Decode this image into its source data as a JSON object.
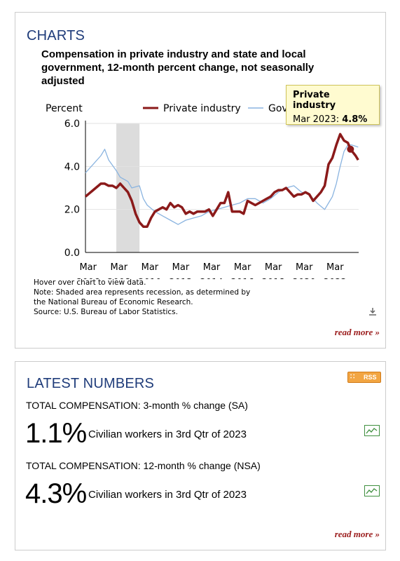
{
  "charts_panel": {
    "heading": "CHARTS",
    "chart_title": "Compensation in private industry and state and local government, 12-month percent change, not seasonally adjusted",
    "notes": [
      "Hover over chart to view data.",
      "Note: Shaded area represents recession, as determined by",
      "the National Bureau of Economic Research.",
      "Source: U.S. Bureau of Labor Statistics."
    ],
    "tooltip": {
      "series": "Private industry",
      "period": "Mar 2023:",
      "value": "4.8%"
    },
    "read_more": "read more »",
    "download_icon": "download-icon"
  },
  "chart_data": {
    "type": "line",
    "ylabel": "Percent",
    "ylim": [
      0,
      6
    ],
    "yticks": [
      "0.0",
      "2.0",
      "4.0",
      "6.0"
    ],
    "xticks": [
      {
        "month": "Mar",
        "year": "2006",
        "x": 2006.17
      },
      {
        "month": "Mar",
        "year": "2008",
        "x": 2008.17
      },
      {
        "month": "Mar",
        "year": "2010",
        "x": 2010.17
      },
      {
        "month": "Mar",
        "year": "2012",
        "x": 2012.17
      },
      {
        "month": "Mar",
        "year": "2014",
        "x": 2014.17
      },
      {
        "month": "Mar",
        "year": "2016",
        "x": 2016.17
      },
      {
        "month": "Mar",
        "year": "2018",
        "x": 2018.17
      },
      {
        "month": "Mar",
        "year": "2020",
        "x": 2020.17
      },
      {
        "month": "Mar",
        "year": "2022",
        "x": 2022.17
      }
    ],
    "xlim": [
      2006.0,
      2023.7
    ],
    "recession": [
      2008.0,
      2009.5
    ],
    "grid": "horizontal",
    "legend_position": "top",
    "series": [
      {
        "name": "Private industry",
        "color": "#8b1a1a",
        "points": [
          [
            2006.0,
            2.6
          ],
          [
            2006.5,
            2.9
          ],
          [
            2007.0,
            3.2
          ],
          [
            2007.25,
            3.2
          ],
          [
            2007.5,
            3.1
          ],
          [
            2007.75,
            3.1
          ],
          [
            2008.0,
            3.0
          ],
          [
            2008.25,
            3.2
          ],
          [
            2008.5,
            3.0
          ],
          [
            2008.75,
            2.8
          ],
          [
            2009.0,
            2.4
          ],
          [
            2009.25,
            1.8
          ],
          [
            2009.5,
            1.4
          ],
          [
            2009.75,
            1.2
          ],
          [
            2010.0,
            1.2
          ],
          [
            2010.25,
            1.6
          ],
          [
            2010.5,
            1.9
          ],
          [
            2010.75,
            2.0
          ],
          [
            2011.0,
            2.1
          ],
          [
            2011.25,
            2.0
          ],
          [
            2011.5,
            2.3
          ],
          [
            2011.75,
            2.1
          ],
          [
            2012.0,
            2.2
          ],
          [
            2012.25,
            2.1
          ],
          [
            2012.5,
            1.8
          ],
          [
            2012.75,
            1.9
          ],
          [
            2013.0,
            1.8
          ],
          [
            2013.25,
            1.9
          ],
          [
            2013.5,
            1.9
          ],
          [
            2013.75,
            1.9
          ],
          [
            2014.0,
            2.0
          ],
          [
            2014.25,
            1.7
          ],
          [
            2014.5,
            2.0
          ],
          [
            2014.75,
            2.3
          ],
          [
            2015.0,
            2.3
          ],
          [
            2015.25,
            2.8
          ],
          [
            2015.5,
            1.9
          ],
          [
            2015.75,
            1.9
          ],
          [
            2016.0,
            1.9
          ],
          [
            2016.25,
            1.8
          ],
          [
            2016.5,
            2.4
          ],
          [
            2016.75,
            2.3
          ],
          [
            2017.0,
            2.2
          ],
          [
            2017.25,
            2.3
          ],
          [
            2017.5,
            2.4
          ],
          [
            2017.75,
            2.5
          ],
          [
            2018.0,
            2.6
          ],
          [
            2018.25,
            2.8
          ],
          [
            2018.5,
            2.9
          ],
          [
            2018.75,
            2.9
          ],
          [
            2019.0,
            3.0
          ],
          [
            2019.25,
            2.8
          ],
          [
            2019.5,
            2.6
          ],
          [
            2019.75,
            2.7
          ],
          [
            2020.0,
            2.7
          ],
          [
            2020.25,
            2.8
          ],
          [
            2020.5,
            2.7
          ],
          [
            2020.75,
            2.4
          ],
          [
            2021.0,
            2.6
          ],
          [
            2021.25,
            2.8
          ],
          [
            2021.5,
            3.1
          ],
          [
            2021.75,
            4.1
          ],
          [
            2022.0,
            4.4
          ],
          [
            2022.25,
            5.0
          ],
          [
            2022.5,
            5.5
          ],
          [
            2022.75,
            5.2
          ],
          [
            2023.0,
            5.1
          ],
          [
            2023.17,
            4.8
          ],
          [
            2023.5,
            4.5
          ],
          [
            2023.67,
            4.3
          ]
        ]
      },
      {
        "name": "Government",
        "color": "#8ab4e0",
        "points": [
          [
            2006.0,
            3.7
          ],
          [
            2006.5,
            4.1
          ],
          [
            2007.0,
            4.5
          ],
          [
            2007.25,
            4.8
          ],
          [
            2007.5,
            4.3
          ],
          [
            2008.0,
            3.8
          ],
          [
            2008.25,
            3.5
          ],
          [
            2008.5,
            3.4
          ],
          [
            2008.75,
            3.3
          ],
          [
            2009.0,
            3.0
          ],
          [
            2009.5,
            3.1
          ],
          [
            2009.75,
            2.5
          ],
          [
            2010.0,
            2.2
          ],
          [
            2010.5,
            1.9
          ],
          [
            2011.0,
            1.7
          ],
          [
            2011.5,
            1.5
          ],
          [
            2012.0,
            1.3
          ],
          [
            2012.5,
            1.5
          ],
          [
            2013.0,
            1.6
          ],
          [
            2013.5,
            1.7
          ],
          [
            2014.0,
            1.9
          ],
          [
            2014.5,
            2.0
          ],
          [
            2015.0,
            2.1
          ],
          [
            2015.5,
            2.2
          ],
          [
            2016.0,
            2.3
          ],
          [
            2016.5,
            2.5
          ],
          [
            2017.0,
            2.5
          ],
          [
            2017.5,
            2.3
          ],
          [
            2018.0,
            2.5
          ],
          [
            2018.5,
            2.8
          ],
          [
            2019.0,
            3.0
          ],
          [
            2019.5,
            3.1
          ],
          [
            2020.0,
            2.8
          ],
          [
            2020.5,
            2.7
          ],
          [
            2021.0,
            2.3
          ],
          [
            2021.5,
            2.0
          ],
          [
            2021.75,
            2.3
          ],
          [
            2022.0,
            2.6
          ],
          [
            2022.25,
            3.2
          ],
          [
            2022.5,
            4.0
          ],
          [
            2022.75,
            4.7
          ],
          [
            2023.0,
            5.0
          ],
          [
            2023.25,
            5.0
          ],
          [
            2023.67,
            4.9
          ]
        ]
      }
    ],
    "highlight": {
      "series": "Private industry",
      "x": 2023.17,
      "y": 4.8
    }
  },
  "latest_panel": {
    "heading": "LATEST NUMBERS",
    "rss_label": "RSS",
    "stats": [
      {
        "label": "TOTAL COMPENSATION: 3-month % change (SA)",
        "value": "1.1%",
        "description": "Civilian workers in 3rd Qtr of 2023",
        "icon": "sparkline-chart-icon"
      },
      {
        "label": "TOTAL COMPENSATION: 12-month % change (NSA)",
        "value": "4.3%",
        "description": "Civilian workers in 3rd Qtr of 2023",
        "icon": "sparkline-chart-icon"
      }
    ],
    "read_more": "read more »"
  }
}
